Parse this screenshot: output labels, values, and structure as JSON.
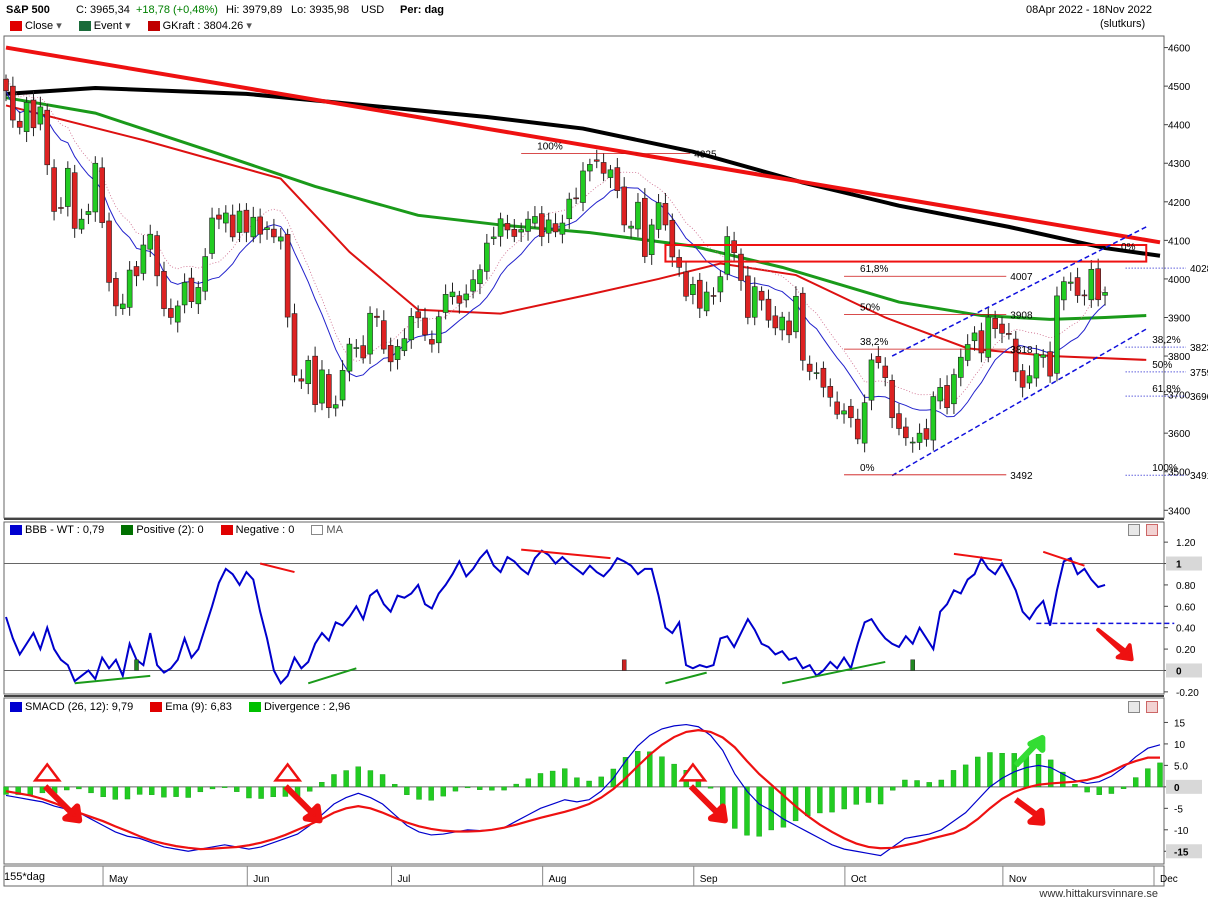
{
  "header": {
    "symbol": "S&P 500",
    "close_label": "C: 3965,34",
    "change_label": "+18,78 (+0,48%)",
    "high_label": "Hi: 3979,89",
    "low_label": "Lo: 3935,98",
    "currency": "USD",
    "period": "Per: dag",
    "date_range": "08Apr 2022 - 18Nov 2022",
    "price_type": "(slutkurs)"
  },
  "main_legend": [
    {
      "label": "Close",
      "color": "#e00000"
    },
    {
      "label": "Event",
      "color": "#1a6b3a"
    },
    {
      "label": "GKraft : 3804.26",
      "color": "#c00000"
    }
  ],
  "bbb_legend": [
    {
      "label": "BBB - WT : 0,79",
      "color": "#0000d0"
    },
    {
      "label": "Positive (2): 0",
      "color": "#007000"
    },
    {
      "label": "Negative : 0",
      "color": "#e00000"
    },
    {
      "label": "MA",
      "color": "#ffffff"
    }
  ],
  "smacd_legend": [
    {
      "label": "SMACD (26, 12): 9,79",
      "color": "#0000d0"
    },
    {
      "label": "Ema (9): 6,83",
      "color": "#e00000"
    },
    {
      "label": "Divergence : 2,96",
      "color": "#00c000"
    }
  ],
  "footer": {
    "left_label": "155*dag",
    "site": "www.hittakursvinnare.se"
  },
  "chart_data": [
    {
      "type": "candlestick",
      "title": "S&P 500",
      "ylim": [
        3380,
        4630
      ],
      "y_ticks": [
        3400,
        3500,
        3600,
        3700,
        3800,
        3900,
        4000,
        4100,
        4200,
        4300,
        4400,
        4500,
        4600
      ],
      "x_ticks": [
        "May",
        "Jun",
        "Jul",
        "Aug",
        "Sep",
        "Oct",
        "Nov",
        "Dec"
      ],
      "closes": [
        4488,
        4412,
        4393,
        4458,
        4392,
        4446,
        4296,
        4175,
        4183,
        4287,
        4131,
        4155,
        4175,
        4300,
        4146,
        3991,
        3930,
        3935,
        4023,
        4008,
        4088,
        4116,
        4008,
        3923,
        3900,
        3930,
        3991,
        3941,
        3978,
        4058,
        4158,
        4155,
        4171,
        4109,
        4176,
        4121,
        4160,
        4116,
        4133,
        4109,
        4109,
        3901,
        3750,
        3735,
        3789,
        3674,
        3764,
        3666,
        3674,
        3763,
        3831,
        3822,
        3795,
        3911,
        3900,
        3818,
        3785,
        3825,
        3845,
        3903,
        3899,
        3855,
        3831,
        3902,
        3960,
        3966,
        3937,
        3961,
        3998,
        4024,
        4093,
        4109,
        4156,
        4127,
        4110,
        4128,
        4155,
        4162,
        4110,
        4153,
        4122,
        4145,
        4207,
        4210,
        4280,
        4297,
        4305,
        4274,
        4283,
        4229,
        4140,
        4137,
        4199,
        4058,
        4140,
        4198,
        4140,
        4057,
        4030,
        3955,
        3986,
        3924,
        3966,
        3957,
        4006,
        4110,
        4068,
        3996,
        3900,
        3980,
        3945,
        3893,
        3873,
        3901,
        3855,
        3955,
        3789,
        3760,
        3757,
        3719,
        3693,
        3649,
        3658,
        3640,
        3585,
        3679,
        3790,
        3783,
        3744,
        3640,
        3612,
        3588,
        3577,
        3600,
        3584,
        3695,
        3719,
        3666,
        3752,
        3797,
        3830,
        3860,
        3808,
        3901,
        3871,
        3859,
        3856,
        3759,
        3719,
        3749,
        3806,
        3803,
        3748,
        3956,
        3993,
        3992,
        3957,
        3958,
        4025,
        3946,
        3965
      ],
      "lines": [
        {
          "style": "SMA 200 (black)",
          "values": [
            [
              0,
              4480
            ],
            [
              13,
              4495
            ],
            [
              35,
              4480
            ],
            [
              70,
              4420
            ],
            [
              84,
              4390
            ],
            [
              100,
              4330
            ],
            [
              116,
              4250
            ],
            [
              130,
              4190
            ],
            [
              146,
              4135
            ],
            [
              160,
              4080
            ],
            [
              168,
              4060
            ]
          ]
        },
        {
          "style": "trendline (red)",
          "values": [
            [
              0,
              4600
            ],
            [
              168,
              4095
            ]
          ]
        },
        {
          "style": "SMA 50 (green)",
          "values": [
            [
              0,
              4470
            ],
            [
              13,
              4430
            ],
            [
              30,
              4330
            ],
            [
              45,
              4240
            ],
            [
              60,
              4165
            ],
            [
              72,
              4140
            ],
            [
              85,
              4120
            ],
            [
              100,
              4085
            ],
            [
              113,
              4030
            ],
            [
              130,
              3940
            ],
            [
              142,
              3905
            ],
            [
              152,
              3895
            ],
            [
              160,
              3900
            ],
            [
              166,
              3905
            ]
          ]
        },
        {
          "style": "SMA 20 (red)",
          "values": [
            [
              0,
              4450
            ],
            [
              20,
              4360
            ],
            [
              40,
              4260
            ],
            [
              50,
              4070
            ],
            [
              60,
              3920
            ],
            [
              72,
              3910
            ],
            [
              85,
              3960
            ],
            [
              95,
              4000
            ],
            [
              104,
              4040
            ],
            [
              115,
              4010
            ],
            [
              128,
              3900
            ],
            [
              140,
              3820
            ],
            [
              152,
              3800
            ],
            [
              166,
              3790
            ]
          ]
        }
      ],
      "annotations": [
        {
          "text": "100%",
          "x": 97,
          "y": 4325,
          "label": "4325"
        },
        {
          "text": "0%",
          "x": 166,
          "y": 4065
        },
        {
          "text": "61,8%",
          "x": 143,
          "y": 4007,
          "label": "4007"
        },
        {
          "text": "50%",
          "x": 143,
          "y": 3908,
          "label": "3908"
        },
        {
          "text": "38,2%",
          "x": 143,
          "y": 3818,
          "label": "3818"
        },
        {
          "text": "0%",
          "x": 143,
          "y": 3492,
          "label": "3492"
        },
        {
          "text": "",
          "x": 168,
          "y": 4028,
          "label": "4028"
        },
        {
          "text": "38,2%",
          "x": 168,
          "y": 3823,
          "label": "3823"
        },
        {
          "text": "50%",
          "x": 168,
          "y": 3759,
          "label": "3759"
        },
        {
          "text": "61,8%",
          "x": 168,
          "y": 3696,
          "label": "3696"
        },
        {
          "text": "100%",
          "x": 168,
          "y": 3491,
          "label": "3491"
        }
      ]
    },
    {
      "type": "line",
      "title": "BBB - WT",
      "ylim": [
        -0.22,
        1.22
      ],
      "y_ticks": [
        -0.2,
        0,
        0.2,
        0.4,
        0.6,
        0.8,
        1,
        1.2
      ],
      "y_tick_labels": [
        "-0.20",
        "0",
        "0.20",
        "0.40",
        "0.60",
        "0.80",
        "1",
        "1.20"
      ],
      "series": [
        {
          "values": [
            0.5,
            0.3,
            0.15,
            0.25,
            0.35,
            0.2,
            0.4,
            0.2,
            0.1,
            0.05,
            -0.1,
            -0.05,
            0,
            -0.08,
            0.12,
            0.02,
            0.1,
            -0.05,
            0.25,
            0.1,
            0.05,
            0.35,
            0.05,
            -0.02,
            0.02,
            0.1,
            0.3,
            0.12,
            0.2,
            0.4,
            0.6,
            0.82,
            0.95,
            0.9,
            0.8,
            0.92,
            0.85,
            0.55,
            0.3,
            0,
            -0.12,
            -0.05,
            0.12,
            0.02,
            0.08,
            0.25,
            0.35,
            0.28,
            0.45,
            0.42,
            0.5,
            0.6,
            0.48,
            0.7,
            0.75,
            0.62,
            0.55,
            0.7,
            0.68,
            0.72,
            0.8,
            0.62,
            0.58,
            0.72,
            0.8,
            0.9,
            1.02,
            0.88,
            0.95,
            1.05,
            1.12,
            0.98,
            0.92,
            1.06,
            1.02,
            0.95,
            0.9,
            1.05,
            1.12,
            1.08,
            1.0,
            1.06,
            1,
            0.95,
            0.9,
            0.98,
            0.92,
            0.88,
            0.95,
            1.05,
            1.02,
            0.98,
            0.9,
            0.95,
            0.95,
            0.7,
            0.4,
            0.35,
            0.45,
            0.05,
            0.02,
            0.05,
            0.03,
            0.05,
            0.3,
            0.32,
            0.22,
            0.35,
            0.48,
            0.38,
            0.25,
            0.22,
            0.15,
            0.18,
            0.1,
            0.12,
            0.02,
            0.05,
            -0.05,
            0,
            0.08,
            0.02,
            0.12,
            0.02,
            0.25,
            0.45,
            0.48,
            0.38,
            0.3,
            0.25,
            0.22,
            0.32,
            0.25,
            0.4,
            0.3,
            0.2,
            0.55,
            0.62,
            0.75,
            0.72,
            0.85,
            0.9,
            1.05,
            0.95,
            0.9,
            1.0,
            0.88,
            0.75,
            0.55,
            0.48,
            0.58,
            0.65,
            0.42,
            0.75,
            1.02,
            1.05,
            0.9,
            0.95,
            0.85,
            0.78,
            0.8
          ]
        }
      ],
      "reference_line": 0.44
    },
    {
      "type": "line",
      "title": "SMACD (26, 12)",
      "ylim": [
        -17.5,
        16.5
      ],
      "y_ticks": [
        -15,
        -10,
        -5,
        0,
        5,
        10,
        15
      ],
      "y_tick_labels": [
        "-15",
        "-10",
        "-5",
        "0",
        "5.0",
        "10",
        "15"
      ],
      "series": [
        {
          "name": "SMACD (26, 12)",
          "values": [
            -2,
            -2.5,
            -3,
            -3.5,
            -4.5,
            -5.2,
            -6,
            -7.5,
            -9,
            -10.5,
            -11.5,
            -12,
            -13,
            -14,
            -14.5,
            -15,
            -14.5,
            -14,
            -13.5,
            -14,
            -14.5,
            -14,
            -13,
            -12,
            -11,
            -9,
            -6.5,
            -4,
            -2.5,
            -1.5,
            -2.5,
            -4,
            -6.5,
            -9,
            -10.5,
            -11.2,
            -11,
            -10.5,
            -10,
            -10.2,
            -10,
            -9.5,
            -8,
            -6.5,
            -5,
            -4,
            -3,
            -3.5,
            -3,
            -1,
            2,
            6,
            9.5,
            12,
            13.5,
            14.2,
            14.5,
            14,
            12,
            8.5,
            3,
            -1,
            -4,
            -5.5,
            -7.5,
            -9,
            -10.5,
            -12,
            -13.5,
            -14.5,
            -15,
            -15.5,
            -16,
            -14,
            -12,
            -11.5,
            -11,
            -10,
            -8,
            -6,
            -3,
            0,
            2,
            3.5,
            4.5,
            5,
            4.5,
            3,
            1.5,
            0.8,
            1.2,
            2.5,
            4.5,
            7,
            9,
            9.8
          ]
        },
        {
          "name": "Ema (9)",
          "values": [
            -1,
            -1.5,
            -2,
            -2.8,
            -3.8,
            -5,
            -6,
            -7,
            -8,
            -9.2,
            -10.3,
            -11.5,
            -12.5,
            -13.2,
            -13.8,
            -14.2,
            -14.5,
            -14.4,
            -14.2,
            -14,
            -13.6,
            -13,
            -12.2,
            -11.2,
            -10,
            -8.8,
            -7.5,
            -6,
            -5,
            -4.5,
            -5,
            -6,
            -7.2,
            -8.3,
            -9.2,
            -9.8,
            -10.2,
            -10.4,
            -10.4,
            -10.3,
            -10,
            -9.5,
            -8.8,
            -8,
            -7.2,
            -6.5,
            -5.8,
            -5,
            -4,
            -2.5,
            -0.5,
            2,
            4.8,
            7.5,
            9.8,
            11.6,
            12.8,
            13.2,
            12.8,
            11.5,
            9.2,
            6,
            3,
            0.5,
            -2,
            -4.5,
            -6.8,
            -8.8,
            -10.5,
            -12,
            -13.2,
            -14,
            -14.3,
            -14.2,
            -13.6,
            -13,
            -12.2,
            -11.5,
            -10.8,
            -9.5,
            -7.5,
            -5,
            -2.8,
            -1.2,
            -0.2,
            0.5,
            0.8,
            1,
            1.2,
            1.6,
            2.4,
            3.6,
            5,
            6,
            6.8,
            6.8
          ]
        }
      ]
    }
  ]
}
